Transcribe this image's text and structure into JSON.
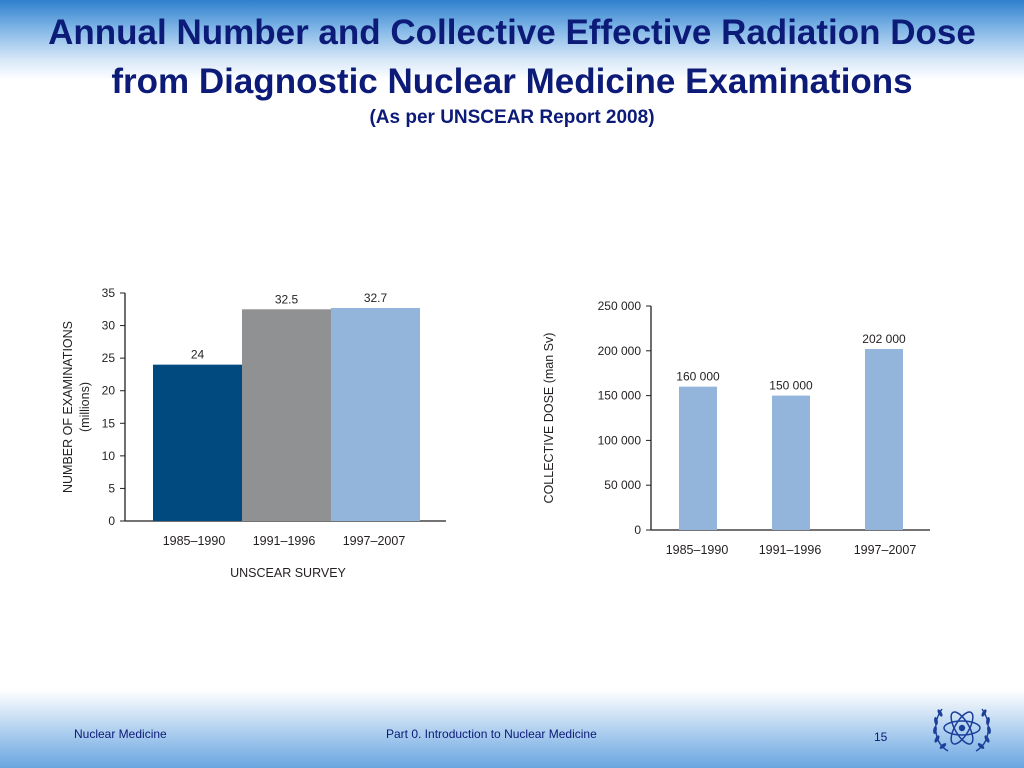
{
  "header": {
    "title": "Annual Number and Collective Effective Radiation Dose from Diagnostic Nuclear Medicine Examinations",
    "subtitle": "(As per UNSCEAR Report 2008)"
  },
  "chart_data": [
    {
      "type": "bar",
      "categories": [
        "1985–1990",
        "1991–1996",
        "1997–2007"
      ],
      "values": [
        24,
        32.5,
        32.7
      ],
      "data_labels": [
        "24",
        "32.5",
        "32.7"
      ],
      "colors": [
        "#004a7f",
        "#8f9193",
        "#93b5dc"
      ],
      "ylabel": "NUMBER OF EXAMINATIONS",
      "ylabel_unit": "(millions)",
      "xlabel": "UNSCEAR SURVEY",
      "ylim": [
        0,
        35
      ],
      "yticks": [
        0,
        5,
        10,
        15,
        20,
        25,
        30,
        35
      ],
      "ytick_labels": [
        "0",
        "5",
        "10",
        "15",
        "20",
        "25",
        "30",
        "35"
      ],
      "grid": false,
      "legend": "none"
    },
    {
      "type": "bar",
      "categories": [
        "1985–1990",
        "1991–1996",
        "1997–2007"
      ],
      "values": [
        160000,
        150000,
        202000
      ],
      "data_labels": [
        "160 000",
        "150 000",
        "202 000"
      ],
      "colors": [
        "#93b5dc",
        "#93b5dc",
        "#93b5dc"
      ],
      "ylabel": "COLLECTIVE DOSE (man Sv)",
      "xlabel": "",
      "ylim": [
        0,
        250000
      ],
      "yticks": [
        0,
        50000,
        100000,
        150000,
        200000,
        250000
      ],
      "ytick_labels": [
        "0",
        "50 000",
        "100 000",
        "150 000",
        "200 000",
        "250 000"
      ],
      "grid": false,
      "legend": "none"
    }
  ],
  "footer": {
    "left": "Nuclear Medicine",
    "center": "Part 0. Introduction to Nuclear Medicine",
    "page": "15",
    "logo_icon": "un-atom-emblem-icon"
  }
}
